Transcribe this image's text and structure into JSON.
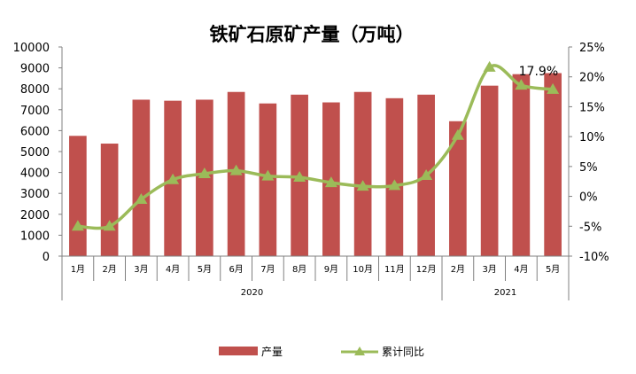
{
  "chart_data": {
    "type": "bar",
    "title": "铁矿石原矿产量（万吨）",
    "categories": [
      "1月",
      "2月",
      "3月",
      "4月",
      "5月",
      "6月",
      "7月",
      "8月",
      "9月",
      "10月",
      "11月",
      "12月",
      "2月",
      "3月",
      "4月",
      "5月"
    ],
    "groups": [
      {
        "label": "2020",
        "count": 12
      },
      {
        "label": "2021",
        "count": 4
      }
    ],
    "series": [
      {
        "name": "产量",
        "type": "bar",
        "axis": "left",
        "color": "#c0504d",
        "values": [
          5750,
          5380,
          7480,
          7430,
          7480,
          7850,
          7300,
          7720,
          7350,
          7850,
          7550,
          7720,
          6450,
          8150,
          8700,
          8750
        ]
      },
      {
        "name": "累计同比",
        "type": "line",
        "axis": "right",
        "color": "#9bbb59",
        "marker": "triangle",
        "values": [
          -5.0,
          -5.0,
          -0.5,
          2.8,
          3.8,
          4.3,
          3.4,
          3.2,
          2.3,
          1.7,
          1.8,
          3.5,
          10.2,
          21.6,
          18.6,
          17.9
        ]
      }
    ],
    "left_axis": {
      "min": 0,
      "max": 10000,
      "step": 1000,
      "tick_labels": [
        "0",
        "1000",
        "2000",
        "3000",
        "4000",
        "5000",
        "6000",
        "7000",
        "8000",
        "9000",
        "10000"
      ]
    },
    "right_axis": {
      "min": -10,
      "max": 25,
      "step": 5,
      "tick_labels": [
        "-10%",
        "-5%",
        "0%",
        "5%",
        "10%",
        "15%",
        "20%",
        "25%"
      ]
    },
    "annotation": {
      "text": "17.9%",
      "series": "累计同比",
      "index": 15
    },
    "legend_position": "bottom",
    "grid": false
  }
}
